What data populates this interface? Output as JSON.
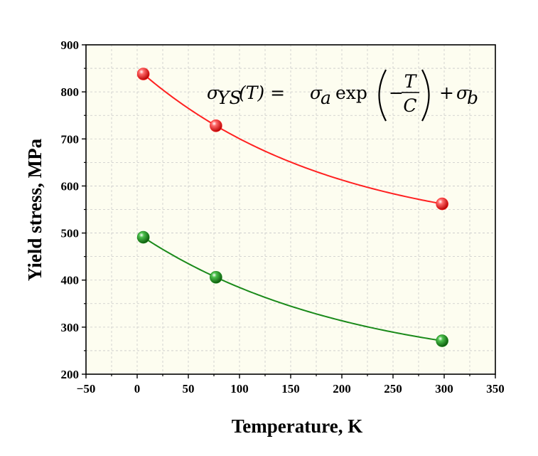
{
  "chart_data": {
    "type": "scatter",
    "xlabel": "Temperature, K",
    "ylabel": "Yield stress, MPa",
    "xlim": [
      -50,
      350
    ],
    "ylim": [
      200,
      900
    ],
    "xticks": [
      -50,
      0,
      50,
      100,
      150,
      200,
      250,
      300,
      350
    ],
    "yticks": [
      200,
      300,
      400,
      500,
      600,
      700,
      800,
      900
    ],
    "xtick_labels": [
      "−50",
      "0",
      "50",
      "100",
      "150",
      "200",
      "250",
      "300",
      "350"
    ],
    "ytick_labels": [
      "200",
      "300",
      "400",
      "500",
      "600",
      "700",
      "800",
      "900"
    ],
    "grid": true,
    "minor_grid": true,
    "background": "#fdfdf0",
    "equation": {
      "lhs_sigma": "σ",
      "lhs_sub": "YS",
      "lhs_arg": "(T) =",
      "rhs_sigma_a": "σ",
      "sub_a": "a",
      "exp": "exp",
      "minus": "−",
      "frac_num": "T",
      "frac_den": "C",
      "plus": "+",
      "rhs_sigma_b": "σ",
      "sub_b": "b"
    },
    "series": [
      {
        "color": "#ff2020",
        "fit": "exponential",
        "points": [
          [
            6,
            838
          ],
          [
            77,
            728
          ],
          [
            298,
            562
          ]
        ]
      },
      {
        "color": "#1a8a1a",
        "fit": "exponential",
        "points": [
          [
            6,
            491
          ],
          [
            77,
            406
          ],
          [
            298,
            271
          ]
        ]
      }
    ]
  }
}
